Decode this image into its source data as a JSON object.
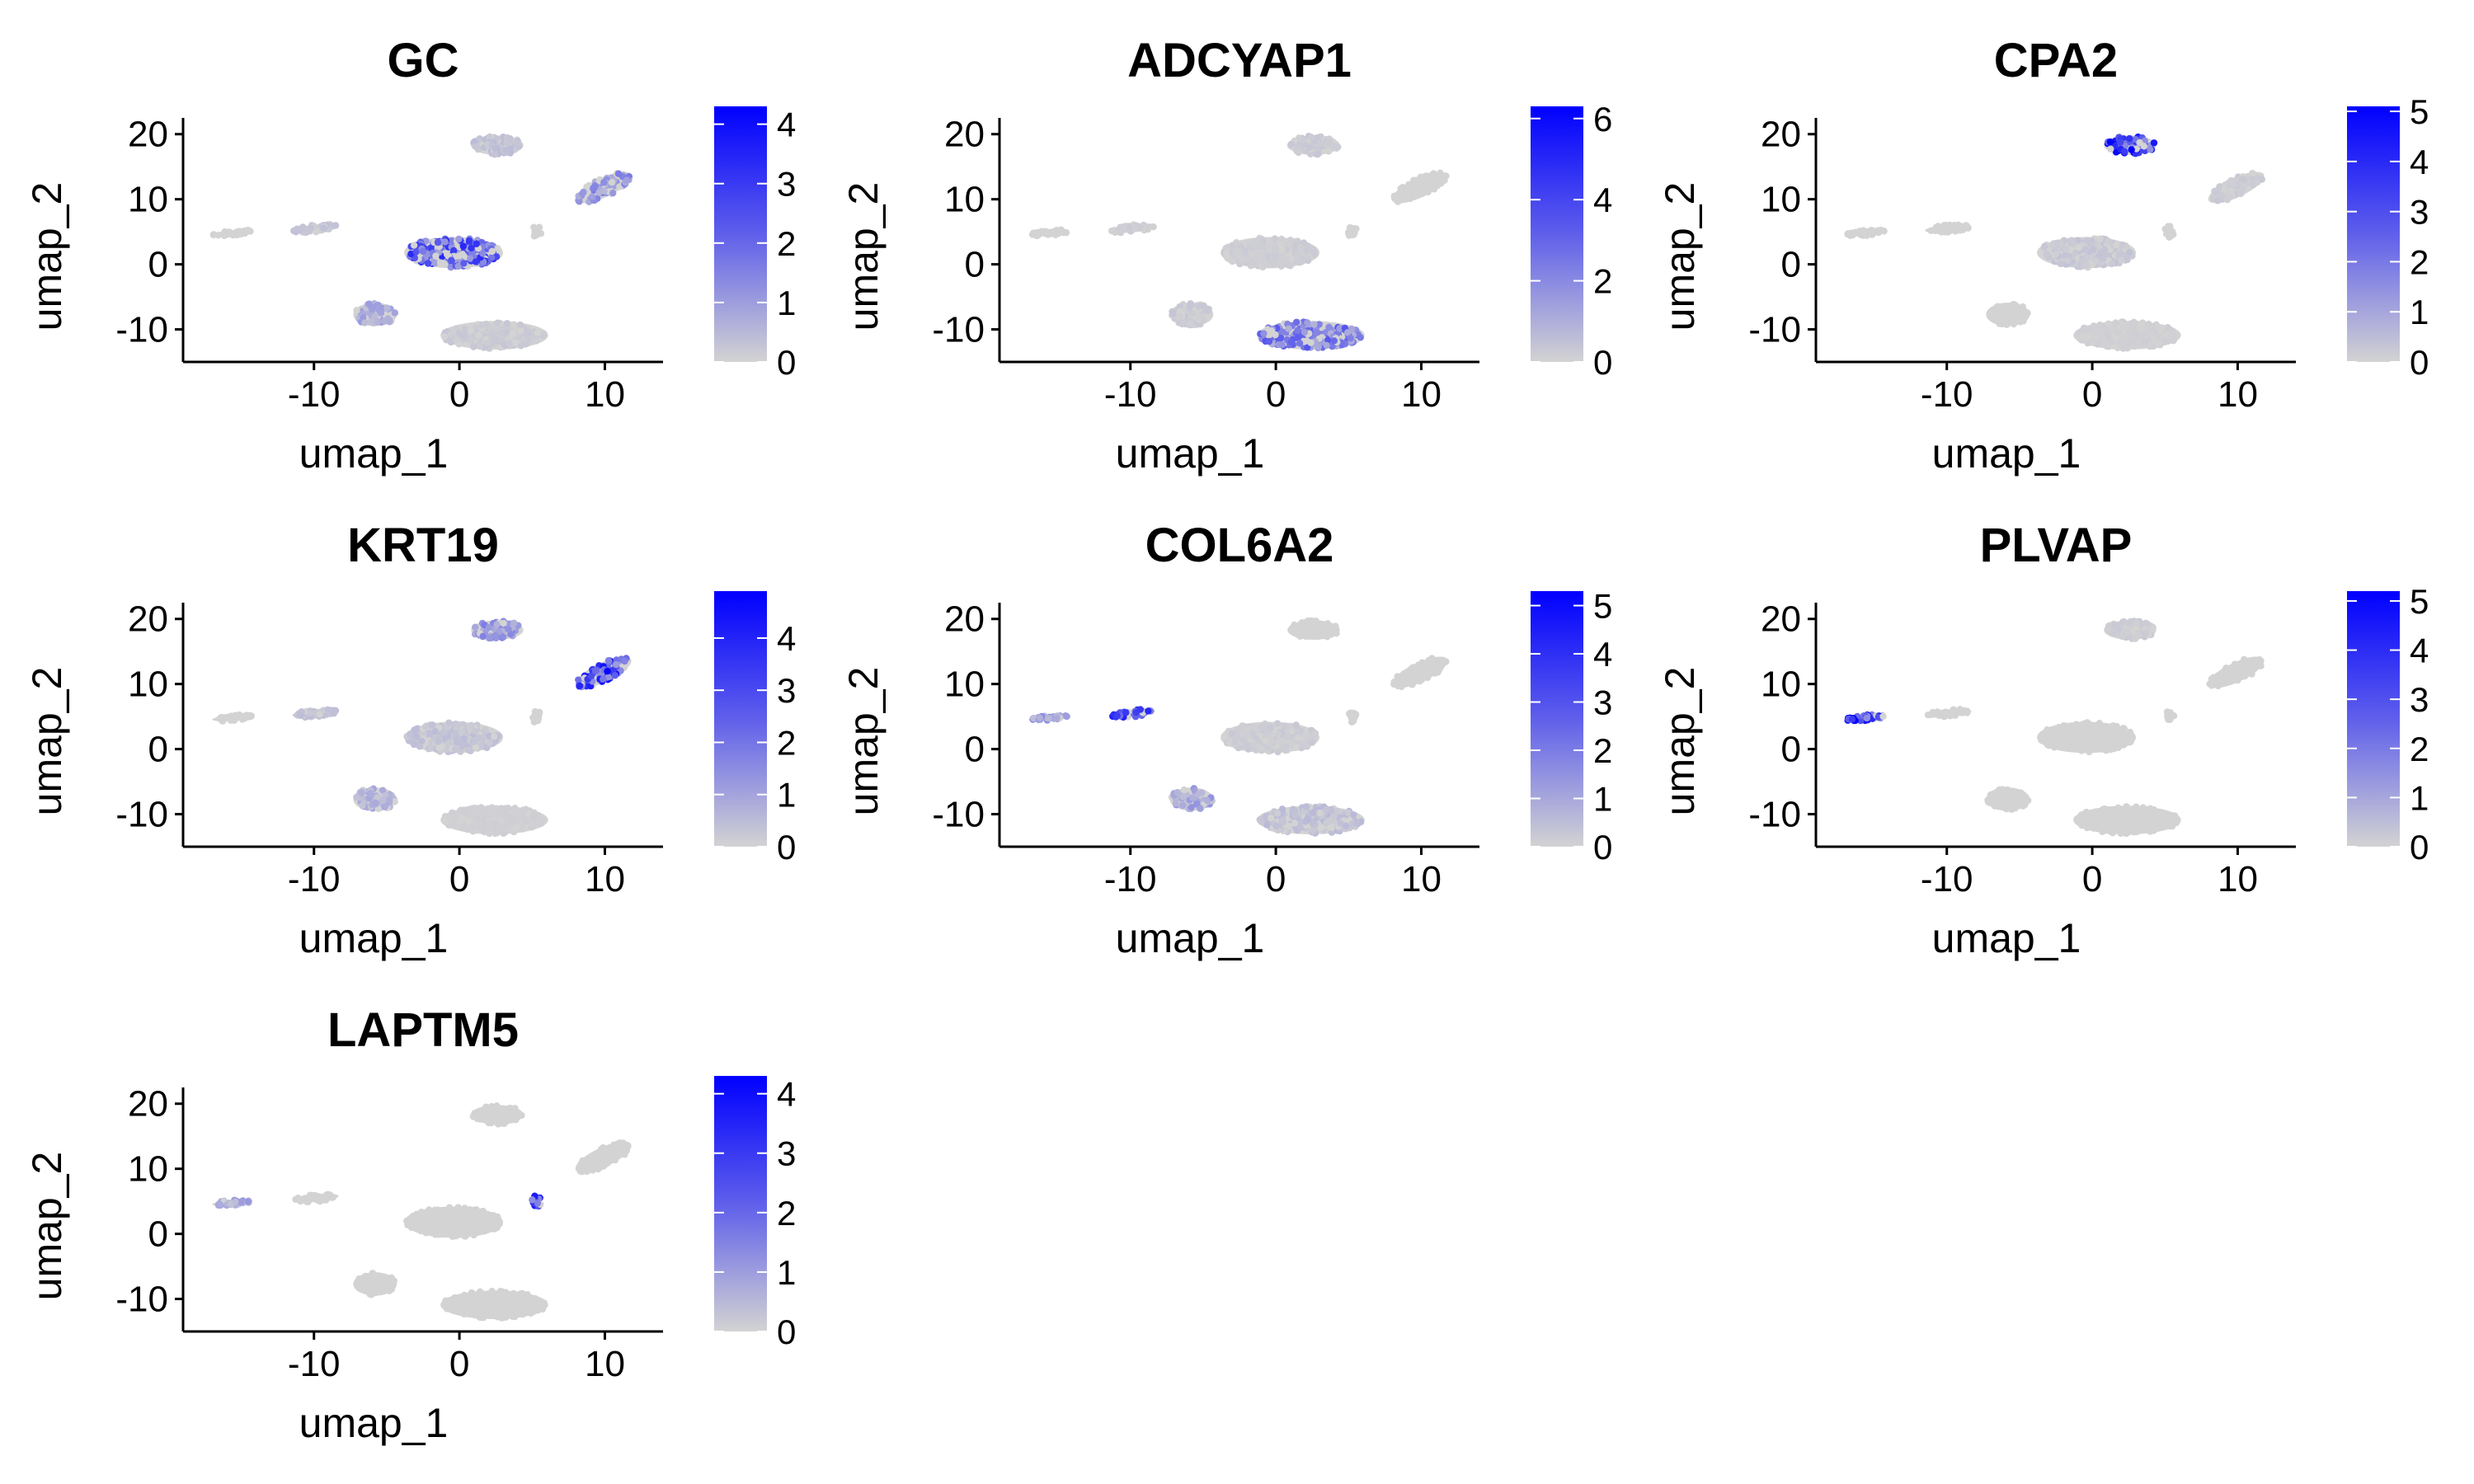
{
  "chart_data": [
    {
      "type": "scatter",
      "title": "GC",
      "xlabel": "umap_1",
      "ylabel": "umap_2",
      "xticks": [
        -10,
        0,
        10
      ],
      "yticks": [
        -10,
        0,
        10,
        20
      ],
      "xlim": [
        -19,
        14
      ],
      "ylim": [
        -15,
        22.5
      ],
      "legend": {
        "position": "right",
        "ticks": [
          0,
          1,
          2,
          3,
          4
        ],
        "max": 4.3,
        "low_color": "#d3d3d3",
        "high_color": "#0000ff"
      },
      "clusters": [
        {
          "x": 2.6,
          "y": 18.3,
          "expression": 0.4
        },
        {
          "x": 9.9,
          "y": 11.8,
          "expression": 1.4
        },
        {
          "x": -15.6,
          "y": 4.8,
          "expression": 0
        },
        {
          "x": -9.9,
          "y": 5.5,
          "expression": 0.3
        },
        {
          "x": 5.3,
          "y": 5.0,
          "expression": 0
        },
        {
          "x": -0.4,
          "y": 1.8,
          "expression": 2.6
        },
        {
          "x": -5.8,
          "y": -7.7,
          "expression": 0.9
        },
        {
          "x": 2.4,
          "y": -10.9,
          "expression": 0.2
        }
      ]
    },
    {
      "type": "scatter",
      "title": "ADCYAP1",
      "xlabel": "umap_1",
      "ylabel": "umap_2",
      "xticks": [
        -10,
        0,
        10
      ],
      "yticks": [
        -10,
        0,
        10,
        20
      ],
      "xlim": [
        -19,
        14
      ],
      "ylim": [
        -15,
        22.5
      ],
      "legend": {
        "position": "right",
        "ticks": [
          0,
          2,
          4,
          6
        ],
        "max": 6.3,
        "low_color": "#d3d3d3",
        "high_color": "#0000ff"
      },
      "clusters": [
        {
          "x": 2.6,
          "y": 18.3,
          "expression": 0.3
        },
        {
          "x": 9.9,
          "y": 11.8,
          "expression": 0
        },
        {
          "x": -15.6,
          "y": 4.8,
          "expression": 0
        },
        {
          "x": -9.9,
          "y": 5.5,
          "expression": 0.2
        },
        {
          "x": 5.3,
          "y": 5.0,
          "expression": 0
        },
        {
          "x": -0.4,
          "y": 1.8,
          "expression": 0.2
        },
        {
          "x": -5.8,
          "y": -7.7,
          "expression": 0.3
        },
        {
          "x": 2.4,
          "y": -10.9,
          "expression": 2.8
        }
      ]
    },
    {
      "type": "scatter",
      "title": "CPA2",
      "xlabel": "umap_1",
      "ylabel": "umap_2",
      "xticks": [
        -10,
        0,
        10
      ],
      "yticks": [
        -10,
        0,
        10,
        20
      ],
      "xlim": [
        -19,
        14
      ],
      "ylim": [
        -15,
        22.5
      ],
      "legend": {
        "position": "right",
        "ticks": [
          0,
          1,
          2,
          3,
          4,
          5
        ],
        "max": 5.1,
        "low_color": "#d3d3d3",
        "high_color": "#0000ff"
      },
      "clusters": [
        {
          "x": 2.6,
          "y": 18.3,
          "expression": 3.8
        },
        {
          "x": 9.9,
          "y": 11.8,
          "expression": 0.2
        },
        {
          "x": -15.6,
          "y": 4.8,
          "expression": 0
        },
        {
          "x": -9.9,
          "y": 5.5,
          "expression": 0
        },
        {
          "x": 5.3,
          "y": 5.0,
          "expression": 0
        },
        {
          "x": -0.4,
          "y": 1.8,
          "expression": 0.3
        },
        {
          "x": -5.8,
          "y": -7.7,
          "expression": 0
        },
        {
          "x": 2.4,
          "y": -10.9,
          "expression": 0.1
        }
      ]
    },
    {
      "type": "scatter",
      "title": "KRT19",
      "xlabel": "umap_1",
      "ylabel": "umap_2",
      "xticks": [
        -10,
        0,
        10
      ],
      "yticks": [
        -10,
        0,
        10,
        20
      ],
      "xlim": [
        -19,
        14
      ],
      "ylim": [
        -15,
        22.5
      ],
      "legend": {
        "position": "right",
        "ticks": [
          0,
          1,
          2,
          3,
          4
        ],
        "max": 4.9,
        "low_color": "#d3d3d3",
        "high_color": "#0000ff"
      },
      "clusters": [
        {
          "x": 2.6,
          "y": 18.3,
          "expression": 1.5
        },
        {
          "x": 9.9,
          "y": 11.8,
          "expression": 3.6
        },
        {
          "x": -15.6,
          "y": 4.8,
          "expression": 0
        },
        {
          "x": -9.9,
          "y": 5.5,
          "expression": 0.4
        },
        {
          "x": 5.3,
          "y": 5.0,
          "expression": 0
        },
        {
          "x": -0.4,
          "y": 1.8,
          "expression": 0.4
        },
        {
          "x": -5.8,
          "y": -7.7,
          "expression": 0.8
        },
        {
          "x": 2.4,
          "y": -10.9,
          "expression": 0.1
        }
      ]
    },
    {
      "type": "scatter",
      "title": "COL6A2",
      "xlabel": "umap_1",
      "ylabel": "umap_2",
      "xticks": [
        -10,
        0,
        10
      ],
      "yticks": [
        -10,
        0,
        10,
        20
      ],
      "xlim": [
        -19,
        14
      ],
      "ylim": [
        -15,
        22.5
      ],
      "legend": {
        "position": "right",
        "ticks": [
          0,
          1,
          2,
          3,
          4,
          5
        ],
        "max": 5.3,
        "low_color": "#d3d3d3",
        "high_color": "#0000ff"
      },
      "clusters": [
        {
          "x": 2.6,
          "y": 18.3,
          "expression": 0
        },
        {
          "x": 9.9,
          "y": 11.8,
          "expression": 0
        },
        {
          "x": -15.6,
          "y": 4.8,
          "expression": 1.5
        },
        {
          "x": -9.9,
          "y": 5.5,
          "expression": 3.6
        },
        {
          "x": 5.3,
          "y": 5.0,
          "expression": 0
        },
        {
          "x": -0.4,
          "y": 1.8,
          "expression": 0.2
        },
        {
          "x": -5.8,
          "y": -7.7,
          "expression": 1.2
        },
        {
          "x": 2.4,
          "y": -10.9,
          "expression": 0.5
        }
      ]
    },
    {
      "type": "scatter",
      "title": "PLVAP",
      "xlabel": "umap_1",
      "ylabel": "umap_2",
      "xticks": [
        -10,
        0,
        10
      ],
      "yticks": [
        -10,
        0,
        10,
        20
      ],
      "xlim": [
        -19,
        14
      ],
      "ylim": [
        -15,
        22.5
      ],
      "legend": {
        "position": "right",
        "ticks": [
          0,
          1,
          2,
          3,
          4,
          5
        ],
        "max": 5.2,
        "low_color": "#d3d3d3",
        "high_color": "#0000ff"
      },
      "clusters": [
        {
          "x": 2.6,
          "y": 18.3,
          "expression": 0.2
        },
        {
          "x": 9.9,
          "y": 11.8,
          "expression": 0
        },
        {
          "x": -15.6,
          "y": 4.8,
          "expression": 4.3
        },
        {
          "x": -9.9,
          "y": 5.5,
          "expression": 0
        },
        {
          "x": 5.3,
          "y": 5.0,
          "expression": 0
        },
        {
          "x": -0.4,
          "y": 1.8,
          "expression": 0
        },
        {
          "x": -5.8,
          "y": -7.7,
          "expression": 0
        },
        {
          "x": 2.4,
          "y": -10.9,
          "expression": 0
        }
      ]
    },
    {
      "type": "scatter",
      "title": "LAPTM5",
      "xlabel": "umap_1",
      "ylabel": "umap_2",
      "xticks": [
        -10,
        0,
        10
      ],
      "yticks": [
        -10,
        0,
        10,
        20
      ],
      "xlim": [
        -19,
        14
      ],
      "ylim": [
        -15,
        22.5
      ],
      "legend": {
        "position": "right",
        "ticks": [
          0,
          1,
          2,
          3,
          4
        ],
        "max": 4.3,
        "low_color": "#d3d3d3",
        "high_color": "#0000ff"
      },
      "clusters": [
        {
          "x": 2.6,
          "y": 18.3,
          "expression": 0
        },
        {
          "x": 9.9,
          "y": 11.8,
          "expression": 0
        },
        {
          "x": -15.6,
          "y": 4.8,
          "expression": 0.9
        },
        {
          "x": -9.9,
          "y": 5.5,
          "expression": 0
        },
        {
          "x": 5.3,
          "y": 5.0,
          "expression": 3.7
        },
        {
          "x": -0.4,
          "y": 1.8,
          "expression": 0
        },
        {
          "x": -5.8,
          "y": -7.7,
          "expression": 0
        },
        {
          "x": 2.4,
          "y": -10.9,
          "expression": 0
        }
      ]
    }
  ]
}
